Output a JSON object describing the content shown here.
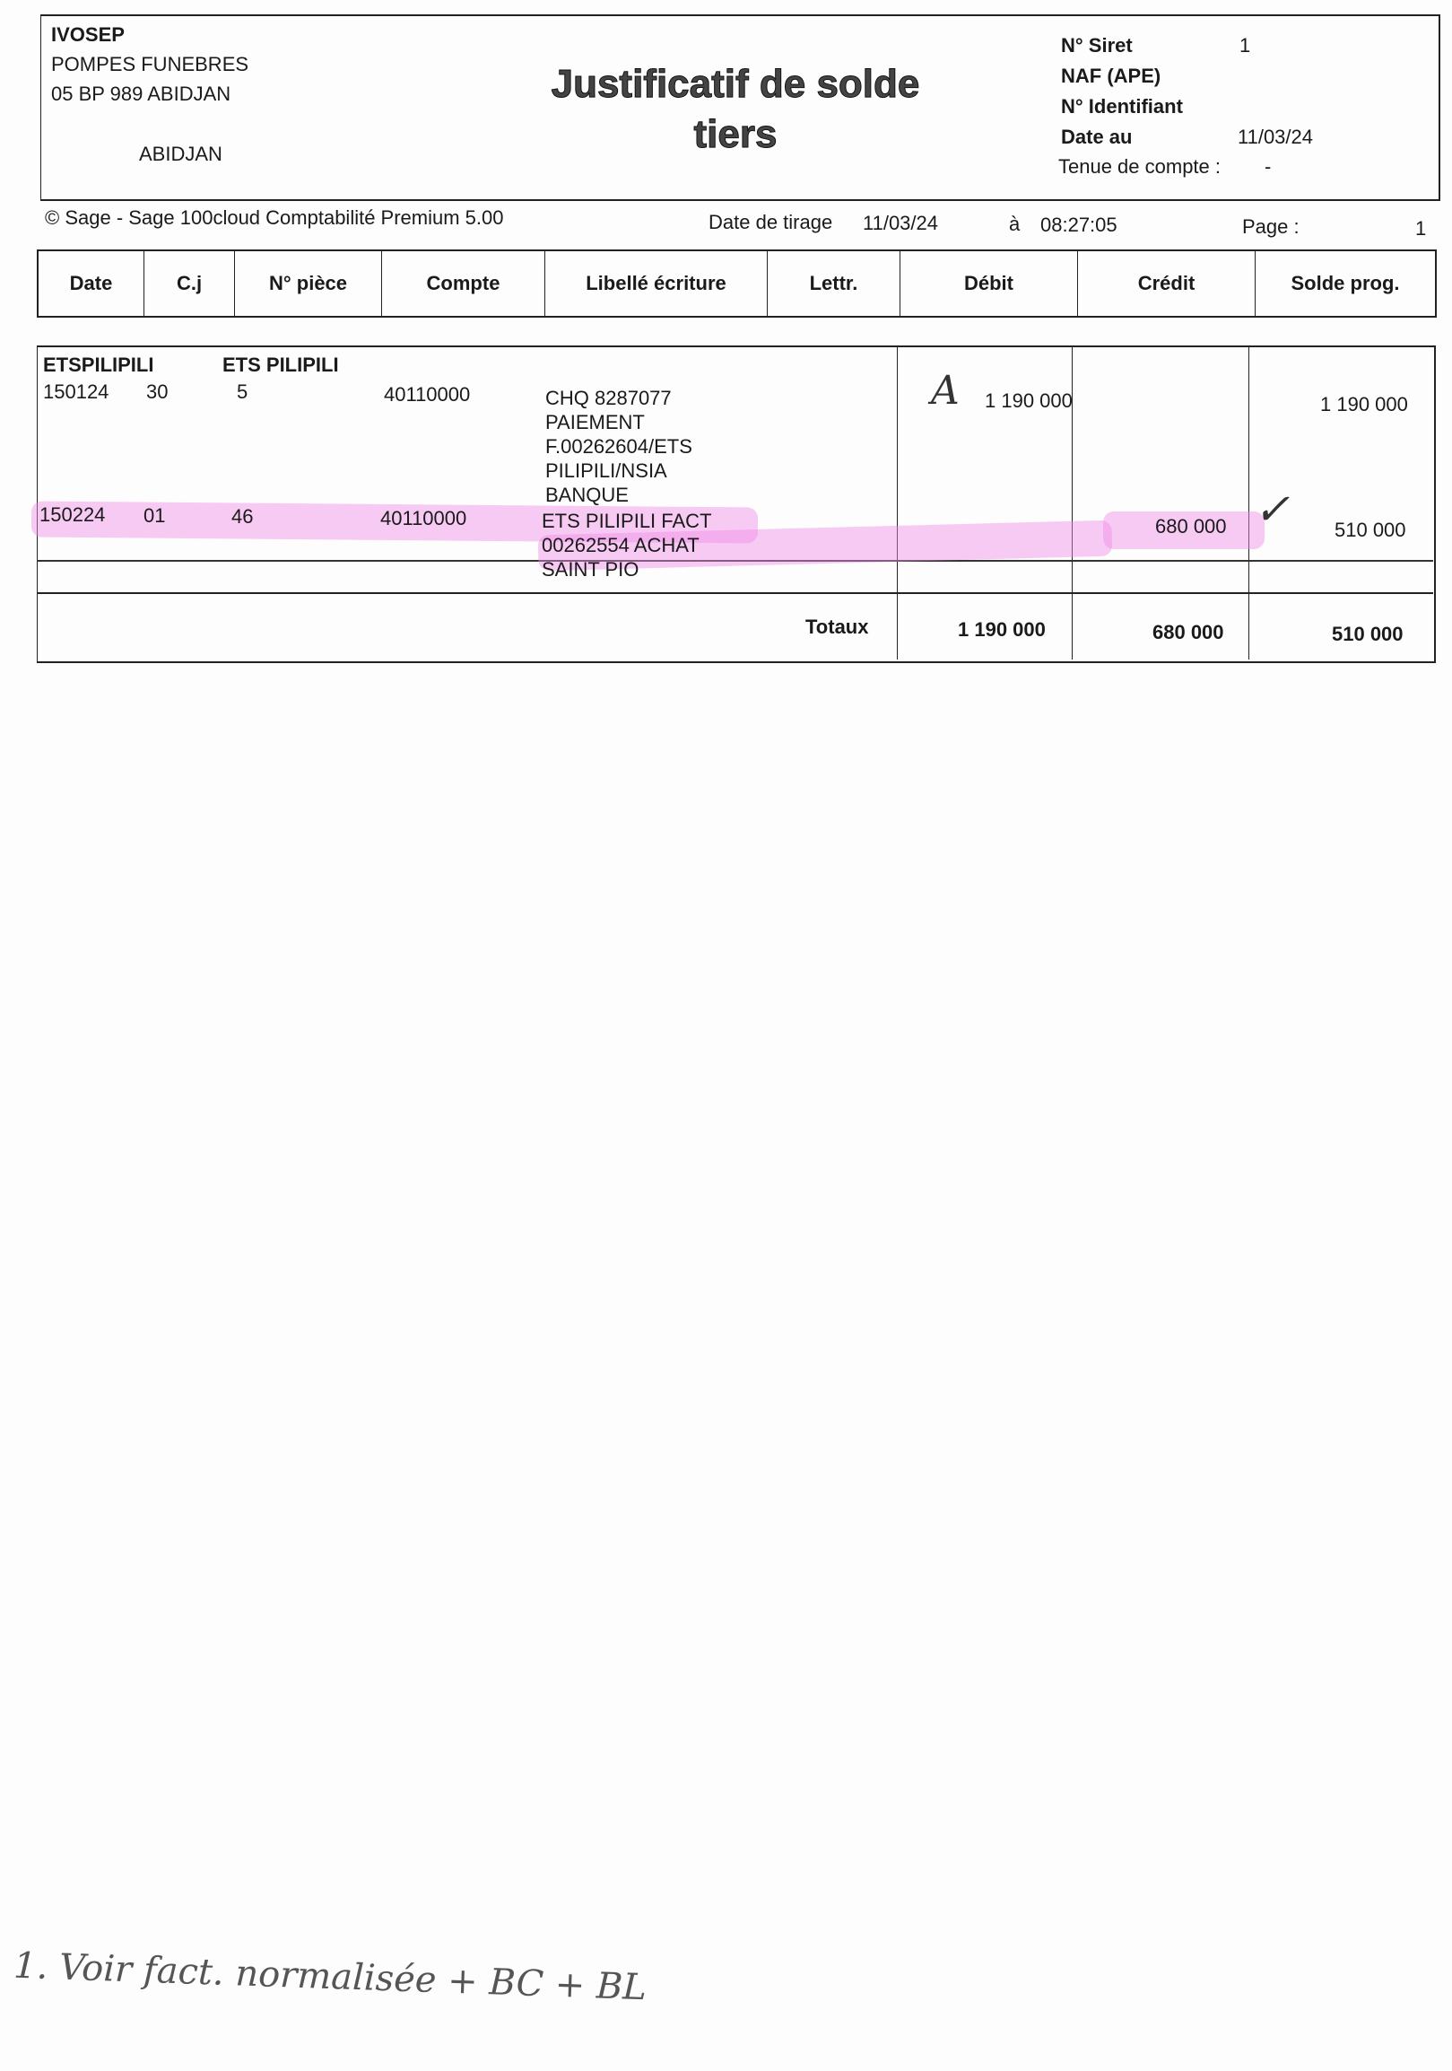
{
  "company": {
    "name": "IVOSEP",
    "line1": "POMPES FUNEBRES",
    "line2": "05 BP 989 ABIDJAN",
    "city": "ABIDJAN"
  },
  "title": {
    "line1": "Justificatif de solde",
    "line2": "tiers"
  },
  "info": {
    "siret_label": "N° Siret",
    "siret_value": "1",
    "naf_label": "NAF (APE)",
    "ident_label": "N° Identifiant",
    "date_label": "Date au",
    "date_value": "11/03/24",
    "tenue_label": "Tenue de compte :",
    "tenue_value": "-"
  },
  "footer_line": {
    "software": "© Sage - Sage 100cloud Comptabilité Premium 5.00",
    "tirage_label": "Date de tirage",
    "tirage_date": "11/03/24",
    "at_label": "à",
    "time": "08:27:05",
    "page_label": "Page :",
    "page_value": "1"
  },
  "columns": [
    "Date",
    "C.j",
    "N° pièce",
    "Compte",
    "Libellé écriture",
    "Lettr.",
    "Débit",
    "Crédit",
    "Solde prog."
  ],
  "account": {
    "code": "ETSPILIPILI",
    "name": "ETS PILIPILI"
  },
  "rows": [
    {
      "date": "150124",
      "cj": "30",
      "piece": "5",
      "compte": "40110000",
      "libelle": [
        "CHQ 8287077",
        "PAIEMENT",
        "F.00262604/ETS",
        "PILIPILI/NSIA",
        "BANQUE"
      ],
      "debit": "1 190 000",
      "credit": "",
      "solde": "1 190 000",
      "annotation": "A"
    },
    {
      "date": "150224",
      "cj": "01",
      "piece": "46",
      "compte": "40110000",
      "libelle": [
        "ETS PILIPILI FACT",
        "00262554 ACHAT",
        "SAINT PIO"
      ],
      "debit": "",
      "credit": "680 000",
      "solde": "510 000",
      "annotation": "✓",
      "highlight_color": "#f08ce6"
    }
  ],
  "totals": {
    "label": "Totaux",
    "debit": "1 190 000",
    "credit": "680 000",
    "solde": "510 000"
  },
  "handwritten_note": "1. Voir fact. normalisée + BC + BL"
}
